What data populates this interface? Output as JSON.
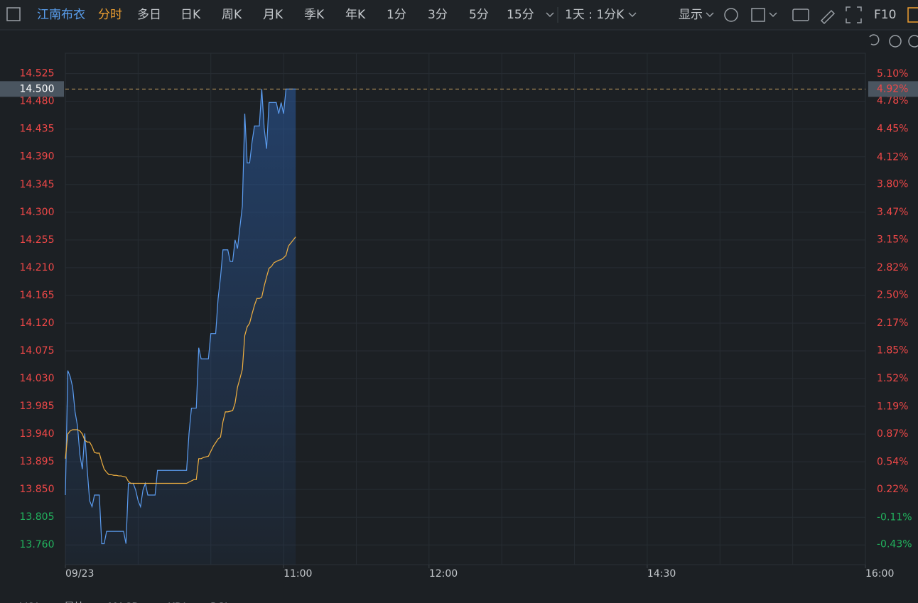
{
  "toolbar": {
    "stock": "江南布衣",
    "active": "分时",
    "periods": [
      "多日",
      "日K",
      "周K",
      "月K",
      "季K",
      "年K",
      "1分",
      "3分",
      "5分",
      "15分"
    ],
    "range": "1天 : 1分K",
    "display": "显示",
    "f10": "F10"
  },
  "chart_data": {
    "type": "line",
    "x": [
      0,
      1,
      2,
      3,
      4,
      5,
      6,
      7,
      8,
      9,
      10,
      11,
      12,
      13,
      14,
      15,
      16,
      17,
      18,
      19,
      20,
      21,
      22,
      23,
      24,
      25,
      26,
      27,
      28,
      29,
      30,
      31,
      32,
      33,
      34,
      35,
      36,
      37,
      38,
      39,
      40,
      41,
      42,
      43,
      44,
      45,
      46,
      47,
      48,
      49,
      50,
      51,
      52,
      53,
      54,
      55,
      56,
      57,
      58,
      59,
      60,
      61,
      62,
      63,
      64,
      65,
      66,
      67,
      68,
      69,
      70,
      71,
      72,
      73,
      74,
      75,
      76,
      77,
      78,
      79,
      80,
      81,
      82,
      83,
      84,
      85,
      86,
      87,
      88,
      89,
      90,
      91,
      92,
      93,
      94,
      95
    ],
    "series": [
      {
        "color": "#5b9cf0",
        "values": [
          13.841,
          14.043,
          14.033,
          14.016,
          13.976,
          13.953,
          13.906,
          13.883,
          13.941,
          13.883,
          13.832,
          13.822,
          13.841,
          13.841,
          13.841,
          13.762,
          13.762,
          13.782,
          13.782,
          13.782,
          13.782,
          13.782,
          13.782,
          13.782,
          13.782,
          13.762,
          13.86,
          13.86,
          13.86,
          13.849,
          13.832,
          13.822,
          13.849,
          13.86,
          13.841,
          13.841,
          13.841,
          13.841,
          13.881,
          13.881,
          13.881,
          13.881,
          13.881,
          13.881,
          13.881,
          13.881,
          13.881,
          13.881,
          13.881,
          13.881,
          13.881,
          13.941,
          13.982,
          13.982,
          13.982,
          14.08,
          14.062,
          14.062,
          14.062,
          14.062,
          14.103,
          14.103,
          14.103,
          14.16,
          14.195,
          14.239,
          14.239,
          14.239,
          14.22,
          14.22,
          14.255,
          14.241,
          14.276,
          14.31,
          14.46,
          14.38,
          14.38,
          14.414,
          14.44,
          14.44,
          14.44,
          14.5,
          14.437,
          14.403,
          14.478,
          14.478,
          14.478,
          14.478,
          14.46,
          14.478,
          14.46,
          14.5,
          14.5,
          14.5,
          14.5,
          14.5
        ]
      },
      {
        "color": "#f0b040",
        "values": [
          13.9,
          13.94,
          13.945,
          13.947,
          13.947,
          13.947,
          13.945,
          13.94,
          13.93,
          13.927,
          13.927,
          13.92,
          13.91,
          13.909,
          13.909,
          13.895,
          13.883,
          13.878,
          13.874,
          13.874,
          13.873,
          13.873,
          13.872,
          13.872,
          13.871,
          13.87,
          13.863,
          13.86,
          13.86,
          13.86,
          13.86,
          13.86,
          13.86,
          13.86,
          13.86,
          13.86,
          13.86,
          13.86,
          13.86,
          13.86,
          13.86,
          13.86,
          13.86,
          13.86,
          13.86,
          13.86,
          13.86,
          13.86,
          13.86,
          13.86,
          13.86,
          13.862,
          13.864,
          13.866,
          13.866,
          13.9,
          13.9,
          13.902,
          13.903,
          13.904,
          13.912,
          13.92,
          13.926,
          13.932,
          13.935,
          13.96,
          13.976,
          13.976,
          13.977,
          13.978,
          13.99,
          14.016,
          14.03,
          14.045,
          14.1,
          14.114,
          14.12,
          14.135,
          14.149,
          14.16,
          14.16,
          14.162,
          14.18,
          14.195,
          14.209,
          14.212,
          14.218,
          14.22,
          14.222,
          14.223,
          14.226,
          14.23,
          14.245,
          14.25,
          14.255,
          14.26
        ]
      }
    ],
    "xlim": [
      0,
      330
    ],
    "xticks": [
      {
        "value": 0,
        "label": "09/23"
      },
      {
        "value": 90,
        "label": "11:00"
      },
      {
        "value": 150,
        "label": "12:00"
      },
      {
        "value": 240,
        "label": "14:30"
      },
      {
        "value": 330,
        "label": "16:00"
      }
    ],
    "ylim": [
      13.728,
      14.558
    ],
    "yticks": [
      14.525,
      {
        "value": 14.48,
        "label": "14.480"
      },
      14.435,
      {
        "value": 14.39,
        "label": "14.390"
      },
      14.345,
      {
        "value": 14.3,
        "label": "14.300"
      },
      14.255,
      {
        "value": 14.21,
        "label": "14.210"
      },
      14.165,
      {
        "value": 14.12,
        "label": "14.120"
      },
      14.075,
      {
        "value": 14.03,
        "label": "14.030"
      },
      13.985,
      {
        "value": 13.94,
        "label": "13.940"
      },
      13.895,
      {
        "value": 13.85,
        "label": "13.850"
      },
      13.805,
      {
        "value": 13.76,
        "label": "13.760"
      }
    ],
    "y2lim": [
      -0.666,
      5.34
    ],
    "y2ticks": [
      {
        "value": 5.1,
        "label": "5.10%"
      },
      {
        "value": 4.78,
        "label": "4.78%"
      },
      {
        "value": 4.45,
        "label": "4.45%"
      },
      {
        "value": 4.12,
        "label": "4.12%"
      },
      {
        "value": 3.8,
        "label": "3.80%"
      },
      {
        "value": 3.47,
        "label": "3.47%"
      },
      {
        "value": 3.15,
        "label": "3.15%"
      },
      {
        "value": 2.82,
        "label": "2.82%"
      },
      {
        "value": 2.5,
        "label": "2.50%"
      },
      {
        "value": 2.17,
        "label": "2.17%"
      },
      {
        "value": 1.85,
        "label": "1.85%"
      },
      {
        "value": 1.52,
        "label": "1.52%"
      },
      {
        "value": 1.19,
        "label": "1.19%"
      },
      {
        "value": 0.87,
        "label": "0.87%"
      },
      {
        "value": 0.54,
        "label": "0.54%"
      },
      {
        "value": 0.22,
        "label": "0.22%"
      },
      {
        "value": -0.11,
        "label": "-0.11%"
      },
      {
        "value": -0.43,
        "label": "-0.43%"
      }
    ],
    "last_price": {
      "value": 14.5,
      "label": "14.500"
    },
    "last_change": {
      "value": 4.92,
      "label": "4.92%"
    },
    "up_color": "#f04848",
    "down_color": "#22b35e",
    "grid": true
  },
  "bottom_tabs": [
    "VOL",
    "量比",
    "MACD",
    "KDJ",
    "RSI"
  ]
}
